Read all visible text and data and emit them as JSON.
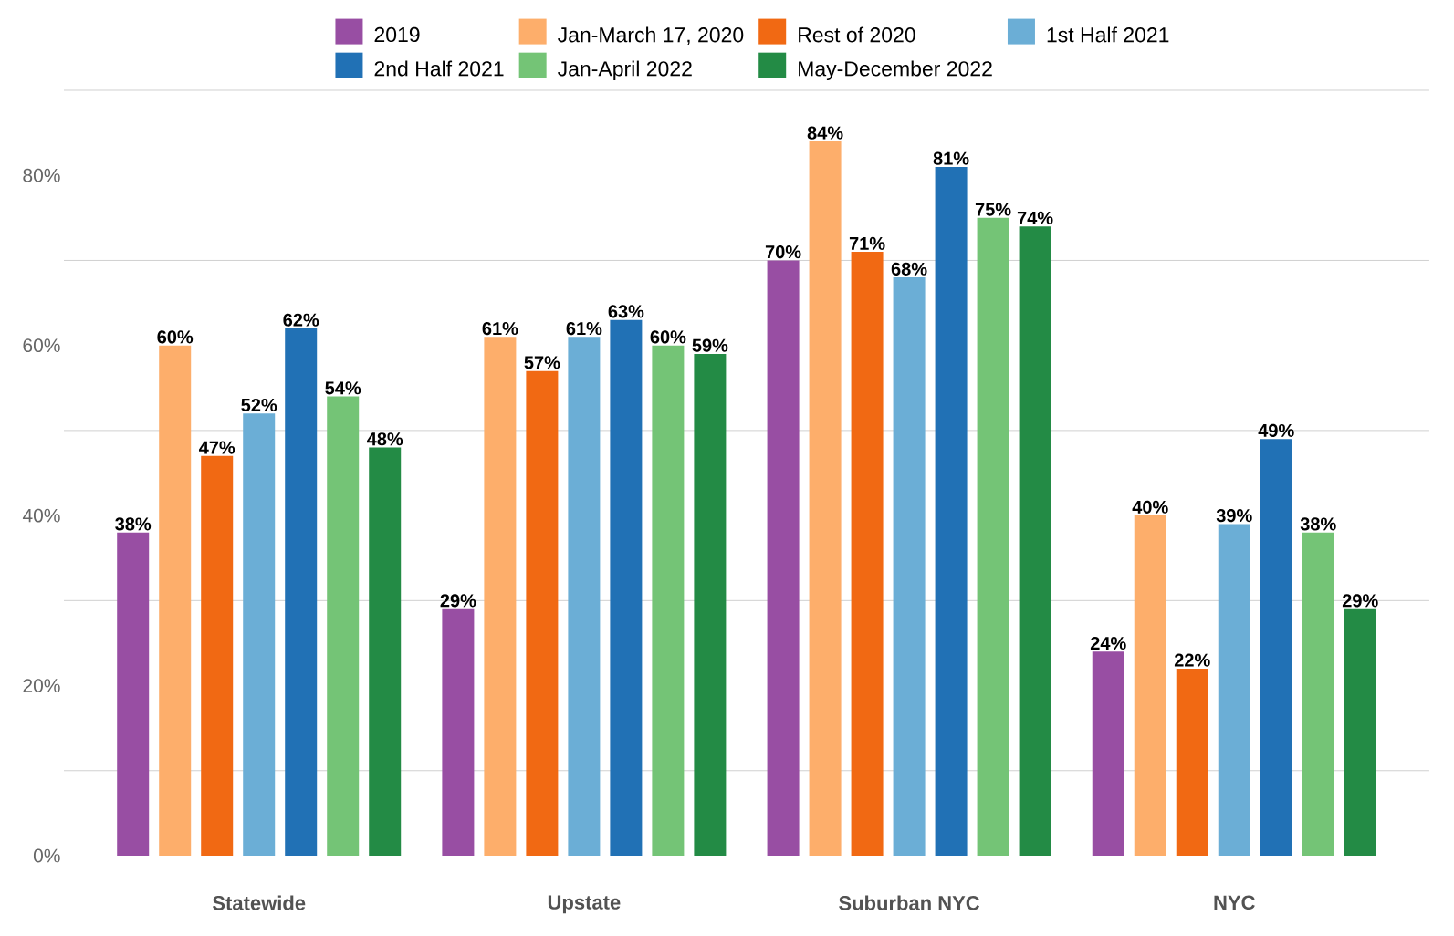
{
  "chart_data": {
    "type": "bar",
    "categories": [
      "Statewide",
      "Upstate",
      "Suburban NYC",
      "NYC"
    ],
    "series": [
      {
        "name": "2019",
        "color": "#984ea3",
        "values": [
          38,
          29,
          70,
          24
        ],
        "value_labels": [
          "38%",
          "29%",
          "70%",
          "24%"
        ]
      },
      {
        "name": "Jan-March 17, 2020",
        "color": "#fdae6b",
        "values": [
          60,
          61,
          84,
          40
        ],
        "value_labels": [
          "60%",
          "61%",
          "84%",
          "40%"
        ]
      },
      {
        "name": "Rest of 2020",
        "color": "#f16913",
        "values": [
          47,
          57,
          71,
          22
        ],
        "value_labels": [
          "47%",
          "57%",
          "71%",
          "22%"
        ]
      },
      {
        "name": "1st Half 2021",
        "color": "#6baed6",
        "values": [
          52,
          61,
          68,
          39
        ],
        "value_labels": [
          "52%",
          "61%",
          "68%",
          "39%"
        ]
      },
      {
        "name": "2nd Half 2021",
        "color": "#2171b5",
        "values": [
          62,
          63,
          81,
          49
        ],
        "value_labels": [
          "62%",
          "63%",
          "81%",
          "49%"
        ]
      },
      {
        "name": "Jan-April 2022",
        "color": "#74c476",
        "values": [
          54,
          60,
          75,
          38
        ],
        "value_labels": [
          "54%",
          "60%",
          "75%",
          "38%"
        ]
      },
      {
        "name": "May-December 2022",
        "color": "#238b45",
        "values": [
          48,
          59,
          74,
          29
        ],
        "value_labels": [
          "48%",
          "59%",
          "74%",
          "29%"
        ]
      }
    ],
    "ylim": [
      0,
      90
    ],
    "yticks": [
      {
        "value": 0,
        "label": "0%"
      },
      {
        "value": 10,
        "label": null
      },
      {
        "value": 20,
        "label": "20%"
      },
      {
        "value": 30,
        "label": null
      },
      {
        "value": 40,
        "label": "40%"
      },
      {
        "value": 50,
        "label": null
      },
      {
        "value": 60,
        "label": "60%"
      },
      {
        "value": 70,
        "label": null
      },
      {
        "value": 80,
        "label": "80%"
      },
      {
        "value": 90,
        "label": null
      }
    ],
    "grid": "y",
    "legend": "top"
  }
}
